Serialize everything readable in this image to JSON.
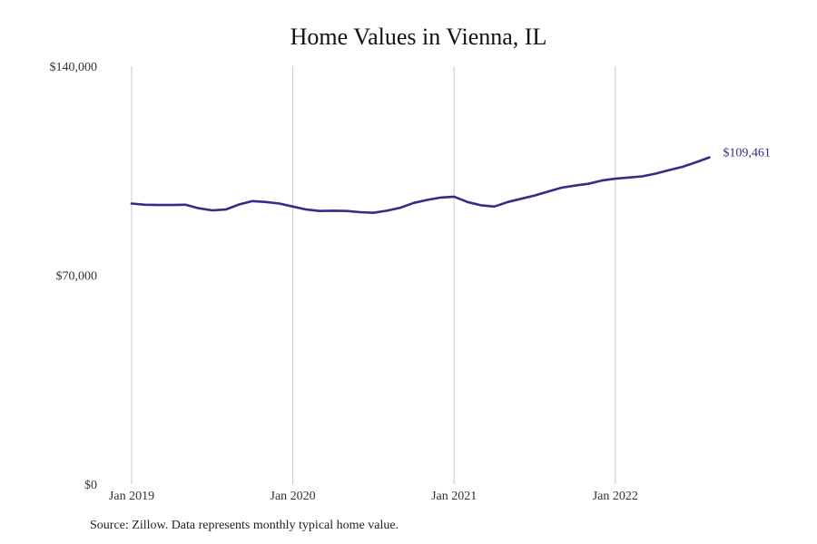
{
  "chart_data": {
    "type": "line",
    "title": "Home Values in Vienna, IL",
    "xlabel": "",
    "ylabel": "",
    "x_ticks": [
      "Jan 2019",
      "Jan 2020",
      "Jan 2021",
      "Jan 2022"
    ],
    "y_ticks": [
      "$0",
      "$70,000",
      "$140,000"
    ],
    "ylim": [
      0,
      140000
    ],
    "grid": "vertical",
    "line_color": "#302e87",
    "grid_color": "#c8c8c8",
    "end_label": "$109,461",
    "series": [
      {
        "points": [
          [
            "2019-01",
            94000
          ],
          [
            "2019-02",
            93600
          ],
          [
            "2019-03",
            93500
          ],
          [
            "2019-04",
            93500
          ],
          [
            "2019-05",
            93600
          ],
          [
            "2019-06",
            92400
          ],
          [
            "2019-07",
            91700
          ],
          [
            "2019-08",
            92000
          ],
          [
            "2019-09",
            93700
          ],
          [
            "2019-10",
            94800
          ],
          [
            "2019-11",
            94500
          ],
          [
            "2019-12",
            94000
          ],
          [
            "2020-01",
            93000
          ],
          [
            "2020-02",
            92000
          ],
          [
            "2020-03",
            91500
          ],
          [
            "2020-04",
            91600
          ],
          [
            "2020-05",
            91500
          ],
          [
            "2020-06",
            91100
          ],
          [
            "2020-07",
            90900
          ],
          [
            "2020-08",
            91600
          ],
          [
            "2020-09",
            92600
          ],
          [
            "2020-10",
            94200
          ],
          [
            "2020-11",
            95200
          ],
          [
            "2020-12",
            96000
          ],
          [
            "2021-01",
            96300
          ],
          [
            "2021-02",
            94500
          ],
          [
            "2021-03",
            93400
          ],
          [
            "2021-04",
            93000
          ],
          [
            "2021-05",
            94500
          ],
          [
            "2021-06",
            95600
          ],
          [
            "2021-07",
            96700
          ],
          [
            "2021-08",
            98000
          ],
          [
            "2021-09",
            99300
          ],
          [
            "2021-10",
            100000
          ],
          [
            "2021-11",
            100600
          ],
          [
            "2021-12",
            101700
          ],
          [
            "2022-01",
            102300
          ],
          [
            "2022-02",
            102700
          ],
          [
            "2022-03",
            103100
          ],
          [
            "2022-04",
            104000
          ],
          [
            "2022-05",
            105200
          ],
          [
            "2022-06",
            106300
          ],
          [
            "2022-07",
            107800
          ],
          [
            "2022-08",
            109461
          ]
        ]
      }
    ]
  },
  "source_note": "Source: Zillow. Data represents monthly typical home value."
}
